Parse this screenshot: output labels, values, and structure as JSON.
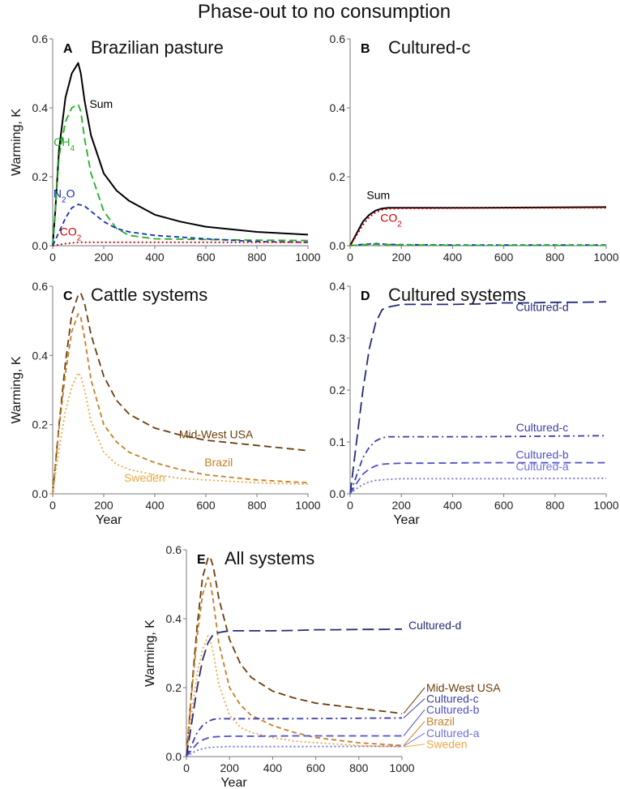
{
  "figure_title": "Phase-out to no consumption",
  "colors": {
    "sum": "#000000",
    "co2": "#cc0000",
    "ch4": "#22b022",
    "n2o": "#1a2fb5",
    "midwest": "#6b3d0a",
    "brazil": "#c77d24",
    "sweden": "#f0a640",
    "cultured_d": "#252a78",
    "cultured_c": "#3e3ea8",
    "cultured_b": "#5050c8",
    "cultured_a": "#7070dc"
  },
  "chart_data": [
    {
      "id": "A",
      "letter": "A",
      "title": "Brazilian pasture",
      "type": "line",
      "ylabel": "Warming, K",
      "xlabel": "",
      "xlim": [
        0,
        1000
      ],
      "ylim": [
        0,
        0.6
      ],
      "xticks": [
        0,
        200,
        400,
        600,
        800,
        1000
      ],
      "yticks": [
        0.0,
        0.2,
        0.4,
        0.6
      ],
      "ytick_labels": [
        "0.0",
        "0.2",
        "0.4",
        "0.6"
      ],
      "series": [
        {
          "key": "sum",
          "style": "solid",
          "label": "Sum",
          "label_at": [
            190,
            0.4
          ],
          "x": [
            0,
            10,
            25,
            50,
            75,
            100,
            110,
            125,
            150,
            200,
            250,
            300,
            400,
            500,
            600,
            800,
            1000
          ],
          "y": [
            0,
            0.1,
            0.28,
            0.43,
            0.5,
            0.53,
            0.5,
            0.42,
            0.32,
            0.21,
            0.16,
            0.13,
            0.09,
            0.07,
            0.055,
            0.04,
            0.032
          ]
        },
        {
          "key": "ch4",
          "style": "dash",
          "label": "CH4",
          "label_at": [
            45,
            0.29
          ],
          "x": [
            0,
            10,
            25,
            50,
            75,
            100,
            110,
            125,
            150,
            200,
            250,
            300,
            400,
            600,
            800,
            1000
          ],
          "y": [
            0,
            0.1,
            0.26,
            0.36,
            0.4,
            0.41,
            0.39,
            0.31,
            0.21,
            0.1,
            0.05,
            0.03,
            0.02,
            0.018,
            0.016,
            0.015
          ]
        },
        {
          "key": "n2o",
          "style": "shortdash",
          "label": "N2O",
          "label_at": [
            45,
            0.14
          ],
          "x": [
            0,
            25,
            50,
            75,
            100,
            125,
            150,
            200,
            250,
            300,
            400,
            600,
            800,
            1000
          ],
          "y": [
            0,
            0.04,
            0.08,
            0.11,
            0.12,
            0.115,
            0.1,
            0.07,
            0.05,
            0.04,
            0.03,
            0.02,
            0.012,
            0.01
          ]
        },
        {
          "key": "co2",
          "style": "dot",
          "label": "CO2",
          "label_at": [
            70,
            0.03
          ],
          "x": [
            0,
            50,
            100,
            200,
            400,
            600,
            800,
            1000
          ],
          "y": [
            0,
            0.006,
            0.01,
            0.01,
            0.01,
            0.01,
            0.01,
            0.01
          ]
        }
      ]
    },
    {
      "id": "B",
      "letter": "B",
      "title": "Cultured-c",
      "type": "line",
      "ylabel": "",
      "xlabel": "",
      "xlim": [
        0,
        1000
      ],
      "ylim": [
        0,
        0.6
      ],
      "xticks": [
        0,
        200,
        400,
        600,
        800,
        1000
      ],
      "yticks": [
        0.0,
        0.2,
        0.4,
        0.6
      ],
      "ytick_labels": [
        "0.0",
        "0.2",
        "0.4",
        "0.6"
      ],
      "series": [
        {
          "key": "sum",
          "style": "solid",
          "label": "Sum",
          "label_at": [
            110,
            0.135
          ],
          "x": [
            0,
            25,
            50,
            75,
            100,
            125,
            150,
            200,
            300,
            500,
            1000
          ],
          "y": [
            0,
            0.035,
            0.07,
            0.09,
            0.102,
            0.108,
            0.11,
            0.11,
            0.11,
            0.11,
            0.112
          ]
        },
        {
          "key": "co2",
          "style": "dot",
          "label": "CO2",
          "label_at": [
            160,
            0.07
          ],
          "x": [
            0,
            25,
            50,
            75,
            100,
            125,
            150,
            200,
            300,
            500,
            1000
          ],
          "y": [
            0,
            0.03,
            0.06,
            0.083,
            0.097,
            0.104,
            0.107,
            0.108,
            0.108,
            0.109,
            0.11
          ]
        },
        {
          "key": "n2o",
          "style": "shortdash",
          "label": "",
          "x": [
            0,
            50,
            100,
            150,
            200,
            400,
            1000
          ],
          "y": [
            0,
            0.004,
            0.006,
            0.004,
            0.003,
            0.002,
            0.002
          ]
        },
        {
          "key": "ch4",
          "style": "dash",
          "label": "",
          "x": [
            0,
            50,
            100,
            200,
            400,
            1000
          ],
          "y": [
            0,
            0.003,
            0.004,
            0.002,
            0.001,
            0.001
          ]
        }
      ]
    },
    {
      "id": "C",
      "letter": "C",
      "title": "Cattle systems",
      "type": "line",
      "ylabel": "Warming, K",
      "xlabel": "Year",
      "xlim": [
        0,
        1000
      ],
      "ylim": [
        0,
        0.6
      ],
      "xticks": [
        0,
        200,
        400,
        600,
        800,
        1000
      ],
      "yticks": [
        0.0,
        0.2,
        0.4,
        0.6
      ],
      "ytick_labels": [
        "0.0",
        "0.2",
        "0.4",
        "0.6"
      ],
      "series": [
        {
          "key": "midwest",
          "style": "dash",
          "label": "Mid-West USA",
          "label_at": [
            640,
            0.16
          ],
          "x": [
            0,
            25,
            50,
            75,
            100,
            110,
            125,
            150,
            200,
            250,
            300,
            400,
            500,
            600,
            800,
            1000
          ],
          "y": [
            0,
            0.2,
            0.38,
            0.52,
            0.575,
            0.58,
            0.55,
            0.46,
            0.34,
            0.27,
            0.23,
            0.19,
            0.17,
            0.155,
            0.14,
            0.125
          ]
        },
        {
          "key": "brazil",
          "style": "shortdash",
          "label": "Brazil",
          "label_at": [
            650,
            0.08
          ],
          "x": [
            0,
            25,
            50,
            75,
            100,
            110,
            125,
            150,
            200,
            250,
            300,
            400,
            500,
            600,
            800,
            1000
          ],
          "y": [
            0,
            0.19,
            0.35,
            0.47,
            0.52,
            0.51,
            0.45,
            0.33,
            0.2,
            0.15,
            0.12,
            0.09,
            0.07,
            0.055,
            0.04,
            0.032
          ]
        },
        {
          "key": "sweden",
          "style": "dot",
          "label": "Sweden",
          "label_at": [
            360,
            0.035
          ],
          "x": [
            0,
            25,
            50,
            75,
            100,
            110,
            125,
            150,
            200,
            250,
            300,
            400,
            500,
            600,
            800,
            1000
          ],
          "y": [
            0,
            0.13,
            0.24,
            0.31,
            0.35,
            0.34,
            0.3,
            0.21,
            0.12,
            0.085,
            0.07,
            0.055,
            0.045,
            0.04,
            0.032,
            0.028
          ]
        }
      ]
    },
    {
      "id": "D",
      "letter": "D",
      "title": "Cultured systems",
      "type": "line",
      "ylabel": "",
      "xlabel": "Year",
      "xlim": [
        0,
        1000
      ],
      "ylim": [
        0,
        0.4
      ],
      "xticks": [
        0,
        200,
        400,
        600,
        800,
        1000
      ],
      "yticks": [
        0.0,
        0.1,
        0.2,
        0.3,
        0.4
      ],
      "ytick_labels": [
        "0.0",
        "0.1",
        "0.2",
        "0.3",
        "0.4"
      ],
      "series": [
        {
          "key": "cultured_d",
          "style": "longdash",
          "label": "Cultured-d",
          "label_at": [
            750,
            0.352
          ],
          "x": [
            0,
            25,
            50,
            75,
            100,
            125,
            150,
            200,
            300,
            400,
            500,
            600,
            700,
            800,
            900,
            1000
          ],
          "y": [
            0,
            0.1,
            0.2,
            0.28,
            0.33,
            0.355,
            0.36,
            0.365,
            0.365,
            0.365,
            0.366,
            0.368,
            0.368,
            0.369,
            0.369,
            0.37
          ]
        },
        {
          "key": "cultured_c",
          "style": "dashdot",
          "label": "Cultured-c",
          "label_at": [
            750,
            0.12
          ],
          "x": [
            0,
            25,
            50,
            75,
            100,
            125,
            150,
            200,
            300,
            500,
            1000
          ],
          "y": [
            0,
            0.035,
            0.07,
            0.09,
            0.102,
            0.108,
            0.11,
            0.11,
            0.11,
            0.11,
            0.112
          ]
        },
        {
          "key": "cultured_b",
          "style": "dash",
          "label": "Cultured-b",
          "label_at": [
            750,
            0.068
          ],
          "x": [
            0,
            25,
            50,
            75,
            100,
            125,
            150,
            200,
            300,
            500,
            1000
          ],
          "y": [
            0,
            0.02,
            0.038,
            0.048,
            0.054,
            0.057,
            0.058,
            0.059,
            0.059,
            0.06,
            0.06
          ]
        },
        {
          "key": "cultured_a",
          "style": "dot",
          "label": "Cultured-a",
          "label_at": [
            750,
            0.045
          ],
          "x": [
            0,
            25,
            50,
            75,
            100,
            125,
            150,
            200,
            300,
            500,
            1000
          ],
          "y": [
            0,
            0.01,
            0.018,
            0.023,
            0.026,
            0.027,
            0.028,
            0.029,
            0.029,
            0.029,
            0.03
          ]
        }
      ]
    },
    {
      "id": "E",
      "letter": "E",
      "title": "All systems",
      "type": "line",
      "ylabel": "Warming, K",
      "xlabel": "Year",
      "xlim": [
        0,
        1000
      ],
      "ylim": [
        0,
        0.6
      ],
      "xticks": [
        0,
        200,
        400,
        600,
        800,
        1000
      ],
      "yticks": [
        0.0,
        0.2,
        0.4,
        0.6
      ],
      "ytick_labels": [
        "0.0",
        "0.2",
        "0.4",
        "0.6"
      ],
      "legend_labels": [
        {
          "key": "midwest",
          "label": "Mid-West USA",
          "end_y": 0.125,
          "label_y": 0.2
        },
        {
          "key": "cultured_c",
          "label": "Cultured-c",
          "end_y": 0.112,
          "label_y": 0.168
        },
        {
          "key": "cultured_b",
          "label": "Cultured-b",
          "end_y": 0.06,
          "label_y": 0.136
        },
        {
          "key": "brazil",
          "label": "Brazil",
          "end_y": 0.032,
          "label_y": 0.102
        },
        {
          "key": "cultured_a",
          "label": "Cultured-a",
          "end_y": 0.03,
          "label_y": 0.068
        },
        {
          "key": "sweden",
          "label": "Sweden",
          "end_y": 0.028,
          "label_y": 0.036
        }
      ],
      "series": [
        {
          "key": "midwest",
          "style": "dash",
          "label": "",
          "x": [
            0,
            25,
            50,
            75,
            100,
            110,
            125,
            150,
            200,
            250,
            300,
            400,
            500,
            600,
            800,
            1000
          ],
          "y": [
            0,
            0.2,
            0.38,
            0.52,
            0.575,
            0.58,
            0.55,
            0.46,
            0.34,
            0.27,
            0.23,
            0.19,
            0.17,
            0.155,
            0.14,
            0.125
          ]
        },
        {
          "key": "brazil",
          "style": "shortdash",
          "label": "",
          "x": [
            0,
            25,
            50,
            75,
            100,
            110,
            125,
            150,
            200,
            250,
            300,
            400,
            500,
            600,
            800,
            1000
          ],
          "y": [
            0,
            0.19,
            0.35,
            0.47,
            0.52,
            0.51,
            0.45,
            0.33,
            0.2,
            0.15,
            0.12,
            0.09,
            0.07,
            0.055,
            0.04,
            0.032
          ]
        },
        {
          "key": "sweden",
          "style": "dot",
          "label": "",
          "x": [
            0,
            25,
            50,
            75,
            100,
            110,
            125,
            150,
            200,
            250,
            300,
            400,
            500,
            600,
            800,
            1000
          ],
          "y": [
            0,
            0.13,
            0.24,
            0.31,
            0.35,
            0.34,
            0.3,
            0.21,
            0.12,
            0.085,
            0.07,
            0.055,
            0.045,
            0.04,
            0.032,
            0.028
          ]
        },
        {
          "key": "cultured_d",
          "style": "longdash",
          "label": "Cultured-d",
          "label_at": [
            1030,
            0.37
          ],
          "label_anchor": "start",
          "x": [
            0,
            25,
            50,
            75,
            100,
            125,
            150,
            200,
            300,
            400,
            500,
            600,
            700,
            800,
            900,
            1000
          ],
          "y": [
            0,
            0.1,
            0.2,
            0.28,
            0.33,
            0.355,
            0.36,
            0.365,
            0.365,
            0.365,
            0.366,
            0.368,
            0.368,
            0.369,
            0.369,
            0.37
          ]
        },
        {
          "key": "cultured_c",
          "style": "dashdot",
          "label": "",
          "x": [
            0,
            25,
            50,
            75,
            100,
            125,
            150,
            200,
            300,
            500,
            1000
          ],
          "y": [
            0,
            0.035,
            0.07,
            0.09,
            0.102,
            0.108,
            0.11,
            0.11,
            0.11,
            0.11,
            0.112
          ]
        },
        {
          "key": "cultured_b",
          "style": "dash",
          "label": "",
          "x": [
            0,
            25,
            50,
            75,
            100,
            125,
            150,
            200,
            300,
            500,
            1000
          ],
          "y": [
            0,
            0.02,
            0.038,
            0.048,
            0.054,
            0.057,
            0.058,
            0.059,
            0.059,
            0.06,
            0.06
          ]
        },
        {
          "key": "cultured_a",
          "style": "dot",
          "label": "",
          "x": [
            0,
            25,
            50,
            75,
            100,
            125,
            150,
            200,
            300,
            500,
            1000
          ],
          "y": [
            0,
            0.01,
            0.018,
            0.023,
            0.026,
            0.027,
            0.028,
            0.029,
            0.029,
            0.029,
            0.03
          ]
        }
      ]
    }
  ]
}
